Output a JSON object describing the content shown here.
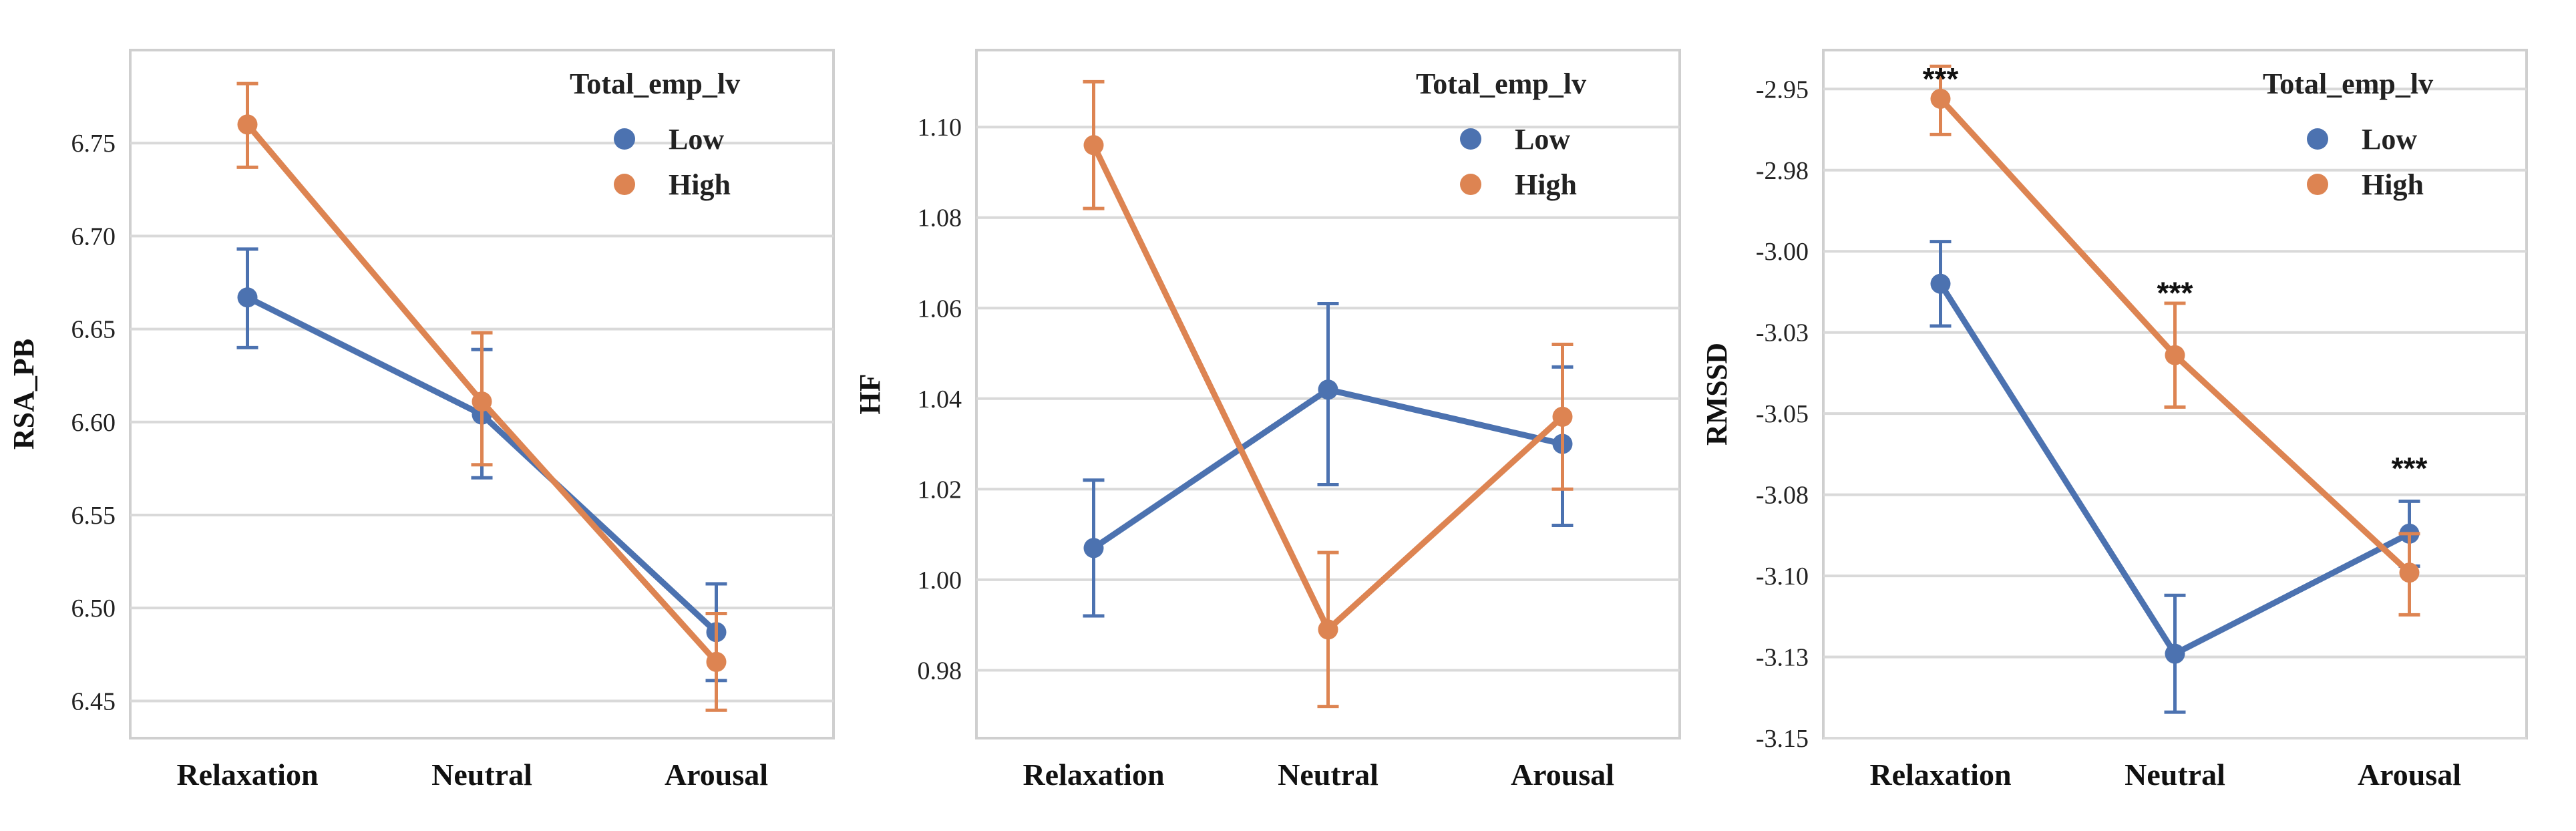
{
  "colors": {
    "low": "#4C72B0",
    "high": "#DD8452",
    "grid": "#d9d9d9",
    "frame": "#cfcfcf"
  },
  "chart_data": [
    {
      "type": "line",
      "categories": [
        "Relaxation",
        "Neutral",
        "Arousal"
      ],
      "ylabel": "RSA_PB",
      "ylim": [
        6.43,
        6.8
      ],
      "yticks": [
        6.45,
        6.5,
        6.55,
        6.6,
        6.65,
        6.7,
        6.75
      ],
      "ytick_labels": [
        "6.45",
        "6.50",
        "6.55",
        "6.60",
        "6.65",
        "6.70",
        "6.75"
      ],
      "legend_title": "Total_emp_lv",
      "legend_position": "top-right",
      "series": [
        {
          "name": "Low",
          "color_key": "low",
          "values": [
            6.667,
            6.604,
            6.487
          ],
          "err_low": [
            6.64,
            6.57,
            6.461
          ],
          "err_high": [
            6.693,
            6.639,
            6.513
          ]
        },
        {
          "name": "High",
          "color_key": "high",
          "values": [
            6.76,
            6.611,
            6.471
          ],
          "err_low": [
            6.737,
            6.577,
            6.445
          ],
          "err_high": [
            6.782,
            6.648,
            6.497
          ]
        }
      ],
      "annotations": []
    },
    {
      "type": "line",
      "categories": [
        "Relaxation",
        "Neutral",
        "Arousal"
      ],
      "ylabel": "HF",
      "ylim": [
        0.965,
        1.117
      ],
      "yticks": [
        0.98,
        1.0,
        1.02,
        1.04,
        1.06,
        1.08,
        1.1
      ],
      "ytick_labels": [
        "0.98",
        "1.00",
        "1.02",
        "1.04",
        "1.06",
        "1.08",
        "1.10"
      ],
      "legend_title": "Total_emp_lv",
      "legend_position": "top-right",
      "series": [
        {
          "name": "Low",
          "color_key": "low",
          "values": [
            1.007,
            1.042,
            1.03
          ],
          "err_low": [
            0.992,
            1.021,
            1.012
          ],
          "err_high": [
            1.022,
            1.061,
            1.047
          ]
        },
        {
          "name": "High",
          "color_key": "high",
          "values": [
            1.096,
            0.989,
            1.036
          ],
          "err_low": [
            1.082,
            0.972,
            1.02
          ],
          "err_high": [
            1.11,
            1.006,
            1.052
          ]
        }
      ],
      "annotations": []
    },
    {
      "type": "line",
      "categories": [
        "Relaxation",
        "Neutral",
        "Arousal"
      ],
      "ylabel": "RMSSD",
      "ylim": [
        -3.15,
        -2.938
      ],
      "yticks": [
        -3.15,
        -3.125,
        -3.1,
        -3.075,
        -3.05,
        -3.025,
        -3.0,
        -2.975,
        -2.95
      ],
      "ytick_labels": [
        "-3.15",
        "-3.13",
        "-3.10",
        "-3.08",
        "-3.05",
        "-3.03",
        "-3.00",
        "-2.98",
        "-2.95"
      ],
      "legend_title": "Total_emp_lv",
      "legend_position": "top-right",
      "series": [
        {
          "name": "Low",
          "color_key": "low",
          "values": [
            -3.01,
            -3.124,
            -3.087
          ],
          "err_low": [
            -3.023,
            -3.142,
            -3.097
          ],
          "err_high": [
            -2.997,
            -3.106,
            -3.077
          ]
        },
        {
          "name": "High",
          "color_key": "high",
          "values": [
            -2.953,
            -3.032,
            -3.099
          ],
          "err_low": [
            -2.964,
            -3.048,
            -3.112
          ],
          "err_high": [
            -2.943,
            -3.016,
            -3.087
          ]
        }
      ],
      "annotations": [
        {
          "category_index": 0,
          "text": "***",
          "y": -2.946
        },
        {
          "category_index": 1,
          "text": "***",
          "y": -3.012
        },
        {
          "category_index": 2,
          "text": "***",
          "y": -3.066
        }
      ]
    }
  ]
}
